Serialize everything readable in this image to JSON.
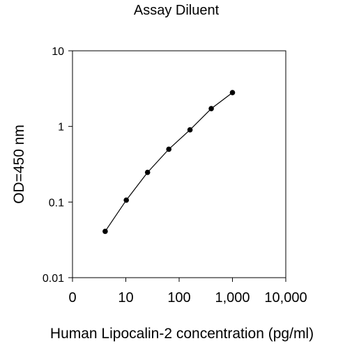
{
  "chart_data": {
    "type": "line",
    "title": "Assay Diluent",
    "xlabel": "Human Lipocalin-2 concentration (pg/ml)",
    "ylabel": "OD=450 nm",
    "x_scale": "log",
    "y_scale": "log",
    "xlim": [
      1,
      10000
    ],
    "ylim": [
      0.01,
      10
    ],
    "x_ticks": [
      1,
      10,
      100,
      1000,
      10000
    ],
    "x_tick_labels": [
      "0",
      "10",
      "100",
      "1,000",
      "10,000"
    ],
    "y_ticks": [
      0.01,
      0.1,
      1,
      10
    ],
    "y_tick_labels": [
      "0.01",
      "0.1",
      "1",
      "10"
    ],
    "grid": false,
    "series": [
      {
        "x": [
          4.1,
          10.2,
          25.6,
          64,
          160,
          400,
          1000
        ],
        "y": [
          0.041,
          0.106,
          0.247,
          0.5,
          0.9,
          1.72,
          2.8
        ],
        "marker": "circle",
        "line": true,
        "color": "#000000"
      }
    ]
  }
}
